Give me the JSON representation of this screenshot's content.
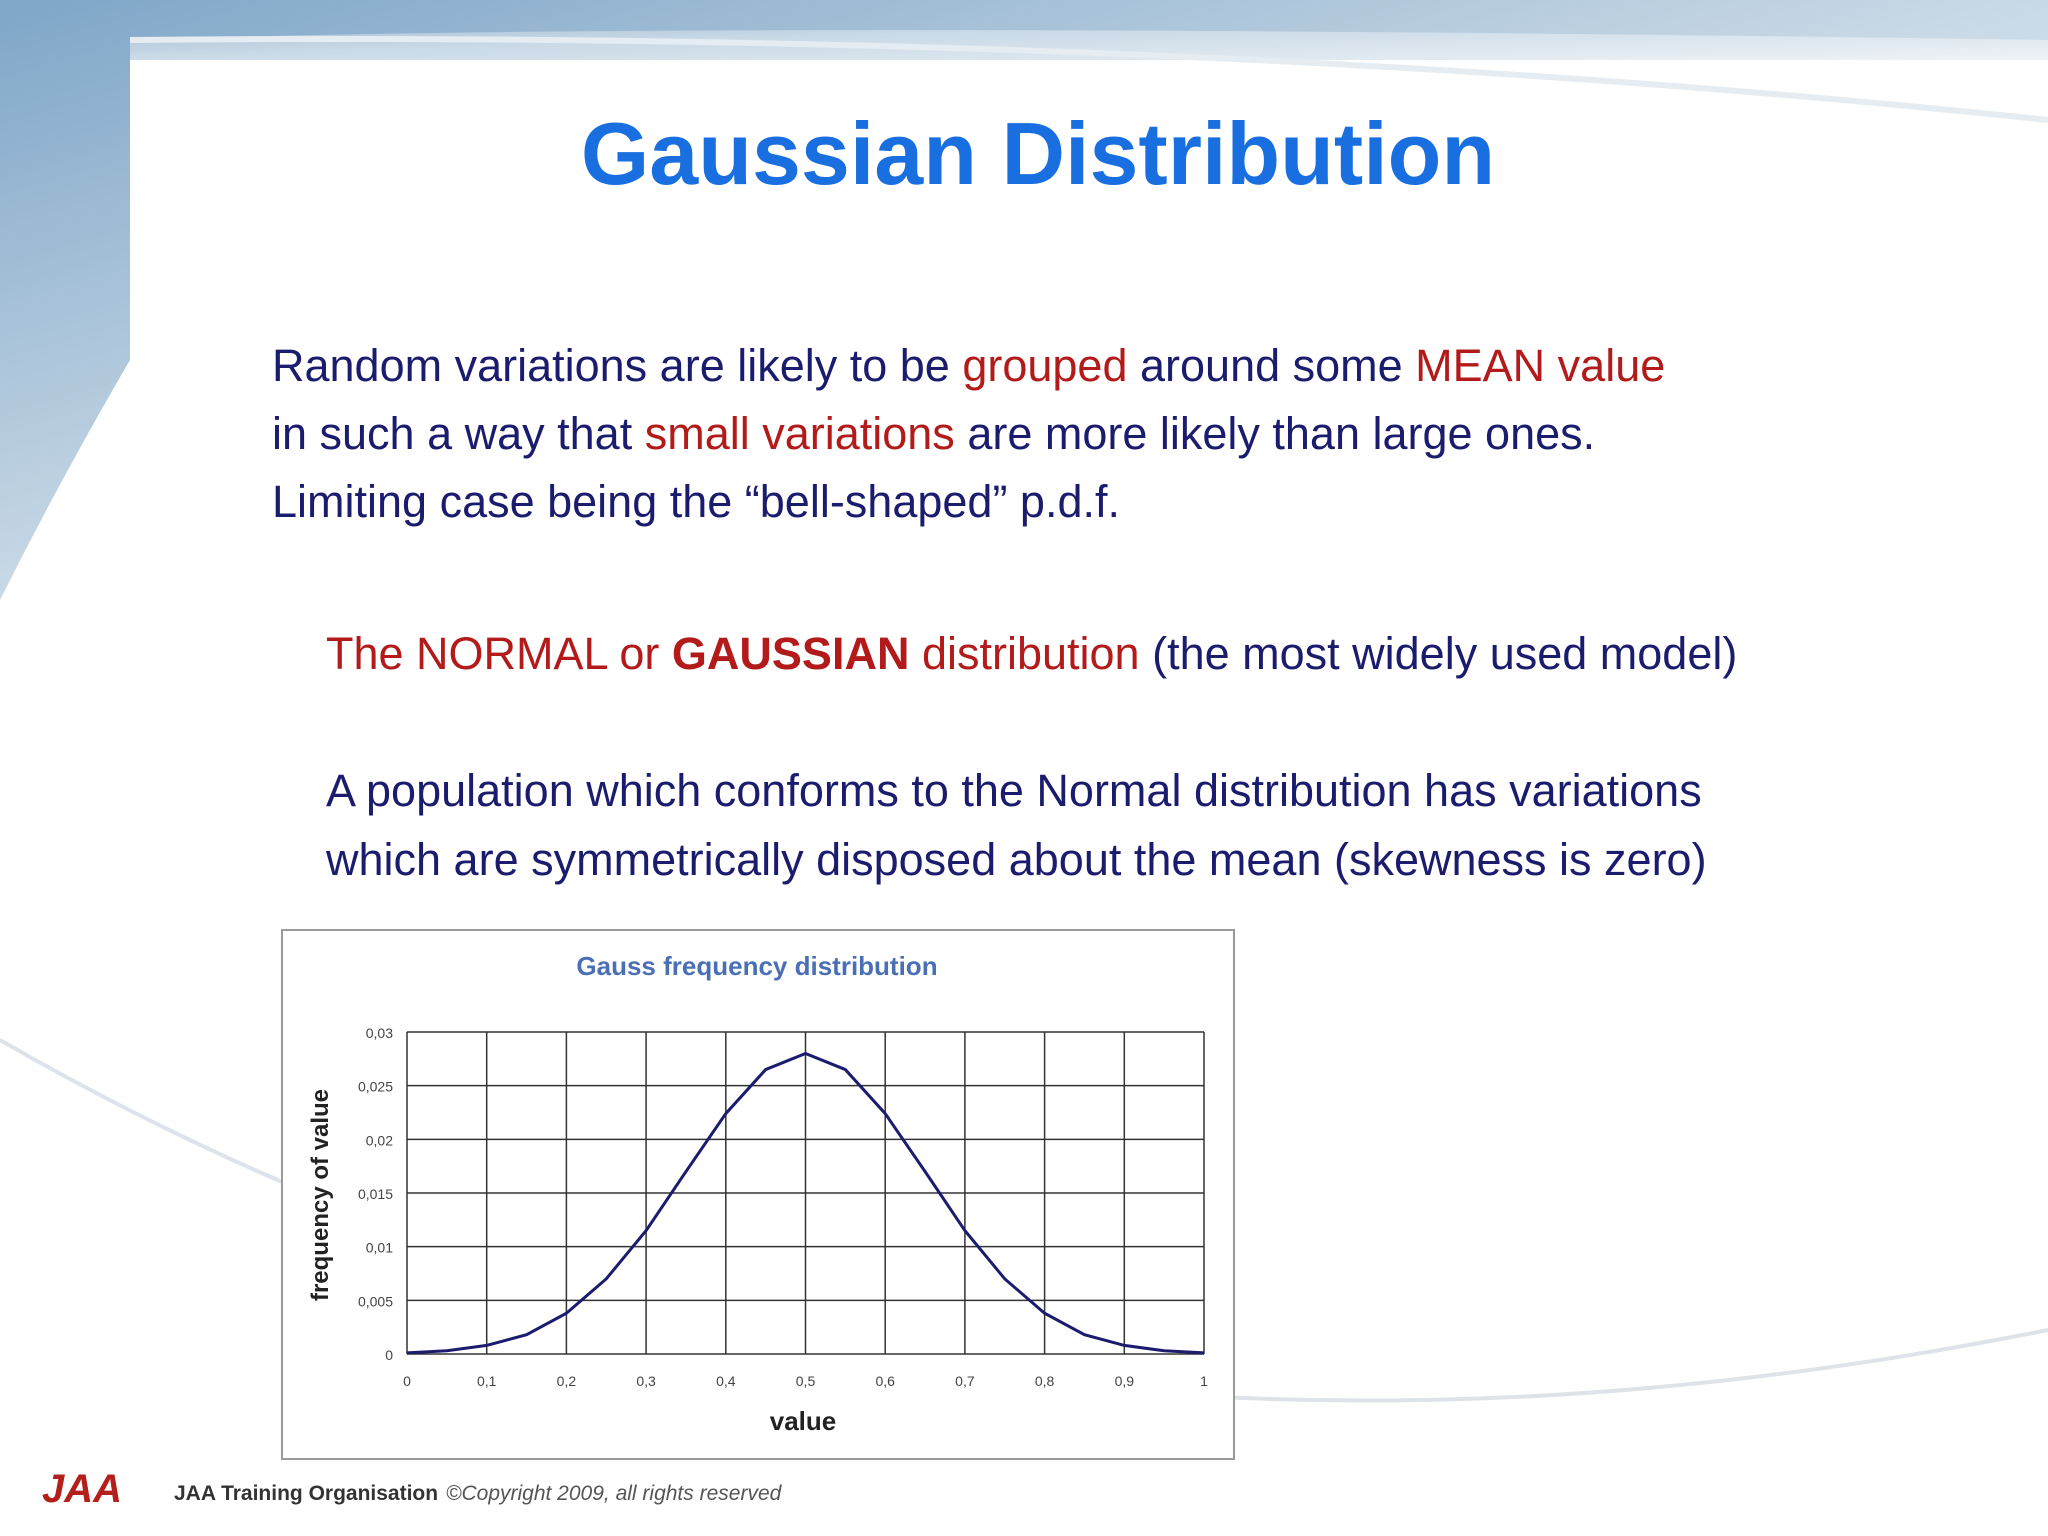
{
  "title": "Gaussian Distribution",
  "paragraphs": [
    {
      "lines": [
        [
          {
            "text": "Random variations are likely to be ",
            "color": "#1c1c6e"
          },
          {
            "text": "grouped",
            "color": "#b31b1b"
          },
          {
            "text": " around some ",
            "color": "#1c1c6e"
          },
          {
            "text": "MEAN value",
            "color": "#b31b1b"
          }
        ],
        [
          {
            "text": "in such a way that ",
            "color": "#1c1c6e"
          },
          {
            "text": "small variations",
            "color": "#b31b1b"
          },
          {
            "text": " are more likely than large ones.",
            "color": "#1c1c6e"
          }
        ],
        [
          {
            "text": "Limiting case being the “bell-shaped” p.d.f.",
            "color": "#1c1c6e"
          }
        ]
      ]
    },
    {
      "lines": [
        [
          {
            "text": "The NORMAL or ",
            "color": "#b31b1b"
          },
          {
            "text": "GAUSSIAN",
            "color": "#b31b1b",
            "bold": true
          },
          {
            "text": " distribution",
            "color": "#b31b1b"
          },
          {
            "text": " (the most widely used model)",
            "color": "#1c1c6e"
          }
        ]
      ]
    },
    {
      "lines": [
        [
          {
            "text": "A population which conforms to the Normal distribution has variations",
            "color": "#1c1c6e"
          }
        ],
        [
          {
            "text": "which are symmetrically disposed about the mean (skewness is zero)",
            "color": "#1c1c6e"
          }
        ]
      ]
    }
  ],
  "footer": {
    "logo": "JAA",
    "organisation": "JAA Training Organisation",
    "copyright": "©Copyright 2009, all rights reserved"
  },
  "chart_data": {
    "type": "line",
    "title": "Gauss frequency distribution",
    "x_label": "value",
    "y_label": "frequency of value",
    "x": [
      0,
      0.05,
      0.1,
      0.15,
      0.2,
      0.25,
      0.3,
      0.35,
      0.4,
      0.45,
      0.5,
      0.55,
      0.6,
      0.65,
      0.7,
      0.75,
      0.8,
      0.85,
      0.9,
      0.95,
      1
    ],
    "series": [
      {
        "name": "frequency",
        "color": "#1c1c6e",
        "values": [
          0.0001,
          0.0003,
          0.0008,
          0.0018,
          0.0038,
          0.007,
          0.0115,
          0.017,
          0.0224,
          0.0265,
          0.028,
          0.0265,
          0.0224,
          0.017,
          0.0115,
          0.007,
          0.0038,
          0.0018,
          0.0008,
          0.0003,
          0.0001
        ]
      }
    ],
    "xlim": [
      0,
      1
    ],
    "ylim": [
      0,
      0.03
    ],
    "xticks": [
      0,
      {
        "value": 0.1,
        "label": "0,1"
      },
      {
        "value": 0.2,
        "label": "0,2"
      },
      {
        "value": 0.3,
        "label": "0,3"
      },
      {
        "value": 0.4,
        "label": "0,4"
      },
      {
        "value": 0.5,
        "label": "0,5"
      },
      {
        "value": 0.6,
        "label": "0,6"
      },
      {
        "value": 0.7,
        "label": "0,7"
      },
      {
        "value": 0.8,
        "label": "0,8"
      },
      {
        "value": 0.9,
        "label": "0,9"
      },
      1
    ],
    "yticks": [
      0,
      {
        "value": 0.005,
        "label": "0,005"
      },
      {
        "value": 0.01,
        "label": "0,01"
      },
      {
        "value": 0.015,
        "label": "0,015"
      },
      {
        "value": 0.02,
        "label": "0,02"
      },
      {
        "value": 0.025,
        "label": "0,025"
      },
      {
        "value": 0.03,
        "label": "0,03"
      }
    ],
    "grid": true
  }
}
